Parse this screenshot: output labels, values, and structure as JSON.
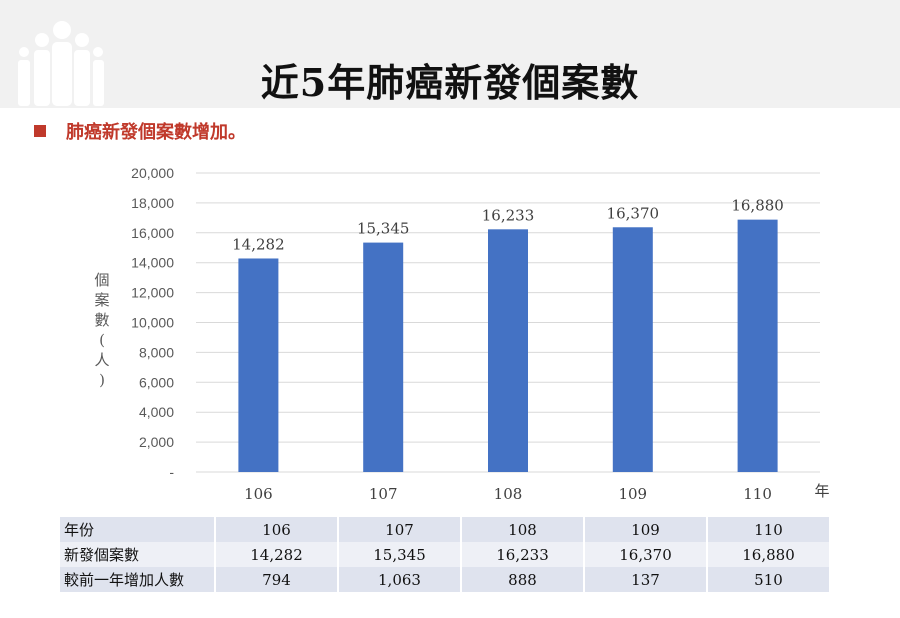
{
  "page": {
    "title": "近5年肺癌新發個案數",
    "bullet": "肺癌新發個案數增加。",
    "colors": {
      "accent": "#c0392b",
      "bar": "#4472c4",
      "band": "#f1f1f1"
    },
    "icons": {
      "logo": "people-logo-icon",
      "bullet": "square-bullet-icon"
    }
  },
  "chart_data": {
    "type": "bar",
    "categories": [
      "106",
      "107",
      "108",
      "109",
      "110"
    ],
    "values": [
      14282,
      15345,
      16233,
      16370,
      16880
    ],
    "data_labels": [
      "14,282",
      "15,345",
      "16,233",
      "16,370",
      "16,880"
    ],
    "title": "",
    "xlabel": "年",
    "ylabel": "個案數(人)",
    "ylim": [
      0,
      20000
    ],
    "yticks": [
      0,
      2000,
      4000,
      6000,
      8000,
      10000,
      12000,
      14000,
      16000,
      18000,
      20000
    ],
    "ytick_labels": [
      "-",
      "2,000",
      "4,000",
      "6,000",
      "8,000",
      "10,000",
      "12,000",
      "14,000",
      "16,000",
      "18,000",
      "20,000"
    ],
    "grid": true,
    "legend": "none"
  },
  "table": {
    "rows": [
      {
        "header": "年份",
        "cells": [
          "106",
          "107",
          "108",
          "109",
          "110"
        ]
      },
      {
        "header": "新發個案數",
        "cells": [
          "14,282",
          "15,345",
          "16,233",
          "16,370",
          "16,880"
        ]
      },
      {
        "header": "較前一年增加人數",
        "cells": [
          "794",
          "1,063",
          "888",
          "137",
          "510"
        ]
      }
    ]
  }
}
